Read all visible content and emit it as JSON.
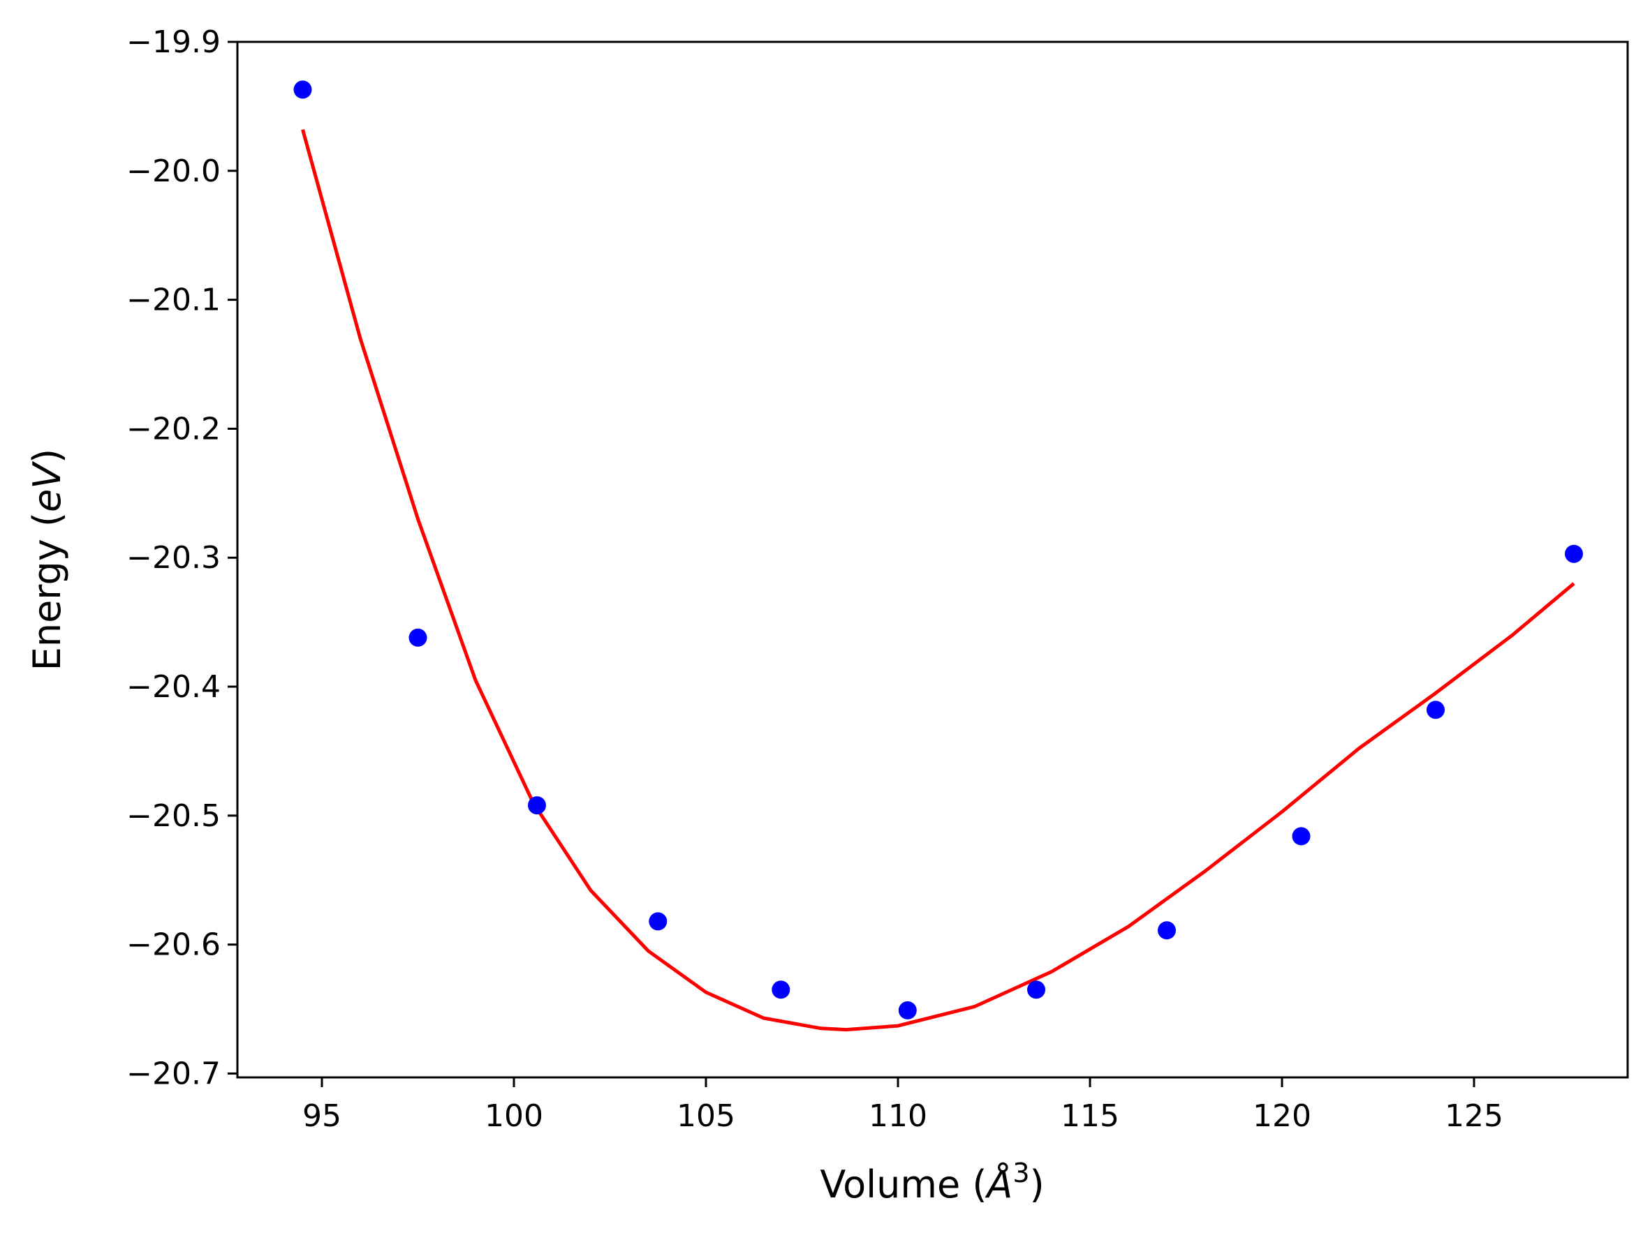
{
  "chart_data": {
    "type": "scatter",
    "xlabel_parts": [
      "Volume (",
      "Å",
      "3",
      ")"
    ],
    "ylabel_parts": [
      "Energy (",
      "eV",
      ")"
    ],
    "xlim": [
      92.8,
      129.0
    ],
    "ylim": [
      -20.703,
      -19.9
    ],
    "xticks": [
      95,
      100,
      105,
      110,
      115,
      120,
      125
    ],
    "yticks": [
      -19.9,
      -20.0,
      -20.1,
      -20.2,
      -20.3,
      -20.4,
      -20.5,
      -20.6,
      -20.7
    ],
    "xtick_labels": [
      "95",
      "100",
      "105",
      "110",
      "115",
      "120",
      "125"
    ],
    "ytick_labels": [
      "−19.9",
      "−20.0",
      "−20.1",
      "−20.2",
      "−20.3",
      "−20.4",
      "−20.5",
      "−20.6",
      "−20.7"
    ],
    "grid": false,
    "series": [
      {
        "kind": "points",
        "color": "#0000ff",
        "x": [
          94.5,
          97.5,
          100.6,
          103.75,
          106.95,
          110.25,
          113.6,
          117.0,
          120.5,
          124.0,
          127.6
        ],
        "y": [
          -19.937,
          -20.362,
          -20.492,
          -20.582,
          -20.635,
          -20.651,
          -20.635,
          -20.589,
          -20.516,
          -20.418,
          -20.297
        ]
      },
      {
        "kind": "fit-line",
        "color": "#ff0000",
        "x": [
          94.5,
          96.0,
          97.5,
          99.0,
          100.5,
          102.0,
          103.5,
          105.0,
          106.5,
          108.0,
          108.65,
          110.0,
          112.0,
          114.0,
          116.0,
          118.0,
          120.0,
          122.0,
          124.0,
          126.0,
          127.6
        ],
        "y": [
          -19.968,
          -20.13,
          -20.27,
          -20.395,
          -20.49,
          -20.558,
          -20.605,
          -20.637,
          -20.657,
          -20.665,
          -20.666,
          -20.663,
          -20.648,
          -20.621,
          -20.586,
          -20.543,
          -20.497,
          -20.448,
          -20.405,
          -20.36,
          -20.32
        ]
      }
    ]
  }
}
